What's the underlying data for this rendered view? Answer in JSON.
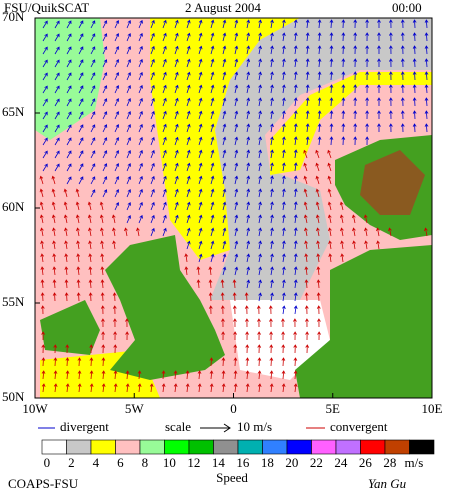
{
  "header": {
    "title": "FSU/QuikSCAT",
    "date": "2 August 2004",
    "time": "00:00"
  },
  "map": {
    "lat_ticks": [
      {
        "value": 70,
        "label": "70N"
      },
      {
        "value": 65,
        "label": "65N"
      },
      {
        "value": 60,
        "label": "60N"
      },
      {
        "value": 55,
        "label": "55N"
      },
      {
        "value": 50,
        "label": "50N"
      }
    ],
    "lon_ticks": [
      {
        "value": -10,
        "label": "10W"
      },
      {
        "value": -5,
        "label": "5W"
      },
      {
        "value": 0,
        "label": "0"
      },
      {
        "value": 5,
        "label": "5E"
      },
      {
        "value": 10,
        "label": "10E"
      }
    ],
    "lat_range": [
      50,
      70
    ],
    "lon_range": [
      -10,
      10
    ]
  },
  "legend": {
    "divergent": "divergent",
    "scale": "scale",
    "scale_value": "10 m/s",
    "convergent": "convergent",
    "divergent_color": "#0000cc",
    "convergent_color": "#cc0000"
  },
  "colorbar": {
    "labels": [
      0,
      2,
      4,
      6,
      8,
      10,
      12,
      14,
      16,
      18,
      20,
      22,
      24,
      26,
      28
    ],
    "unit": "m/s",
    "title": "Speed",
    "colors": [
      "#ffffff",
      "#c8c8c8",
      "#ffff00",
      "#ffc0c0",
      "#98fb98",
      "#00ff00",
      "#00c000",
      "#909090",
      "#00b0b0",
      "#3080ff",
      "#0000ff",
      "#ff60ff",
      "#c070ff",
      "#ff0000",
      "#c04000",
      "#000000"
    ]
  },
  "footer": {
    "credit": "COAPS-FSU",
    "author": "Yan Gu"
  }
}
